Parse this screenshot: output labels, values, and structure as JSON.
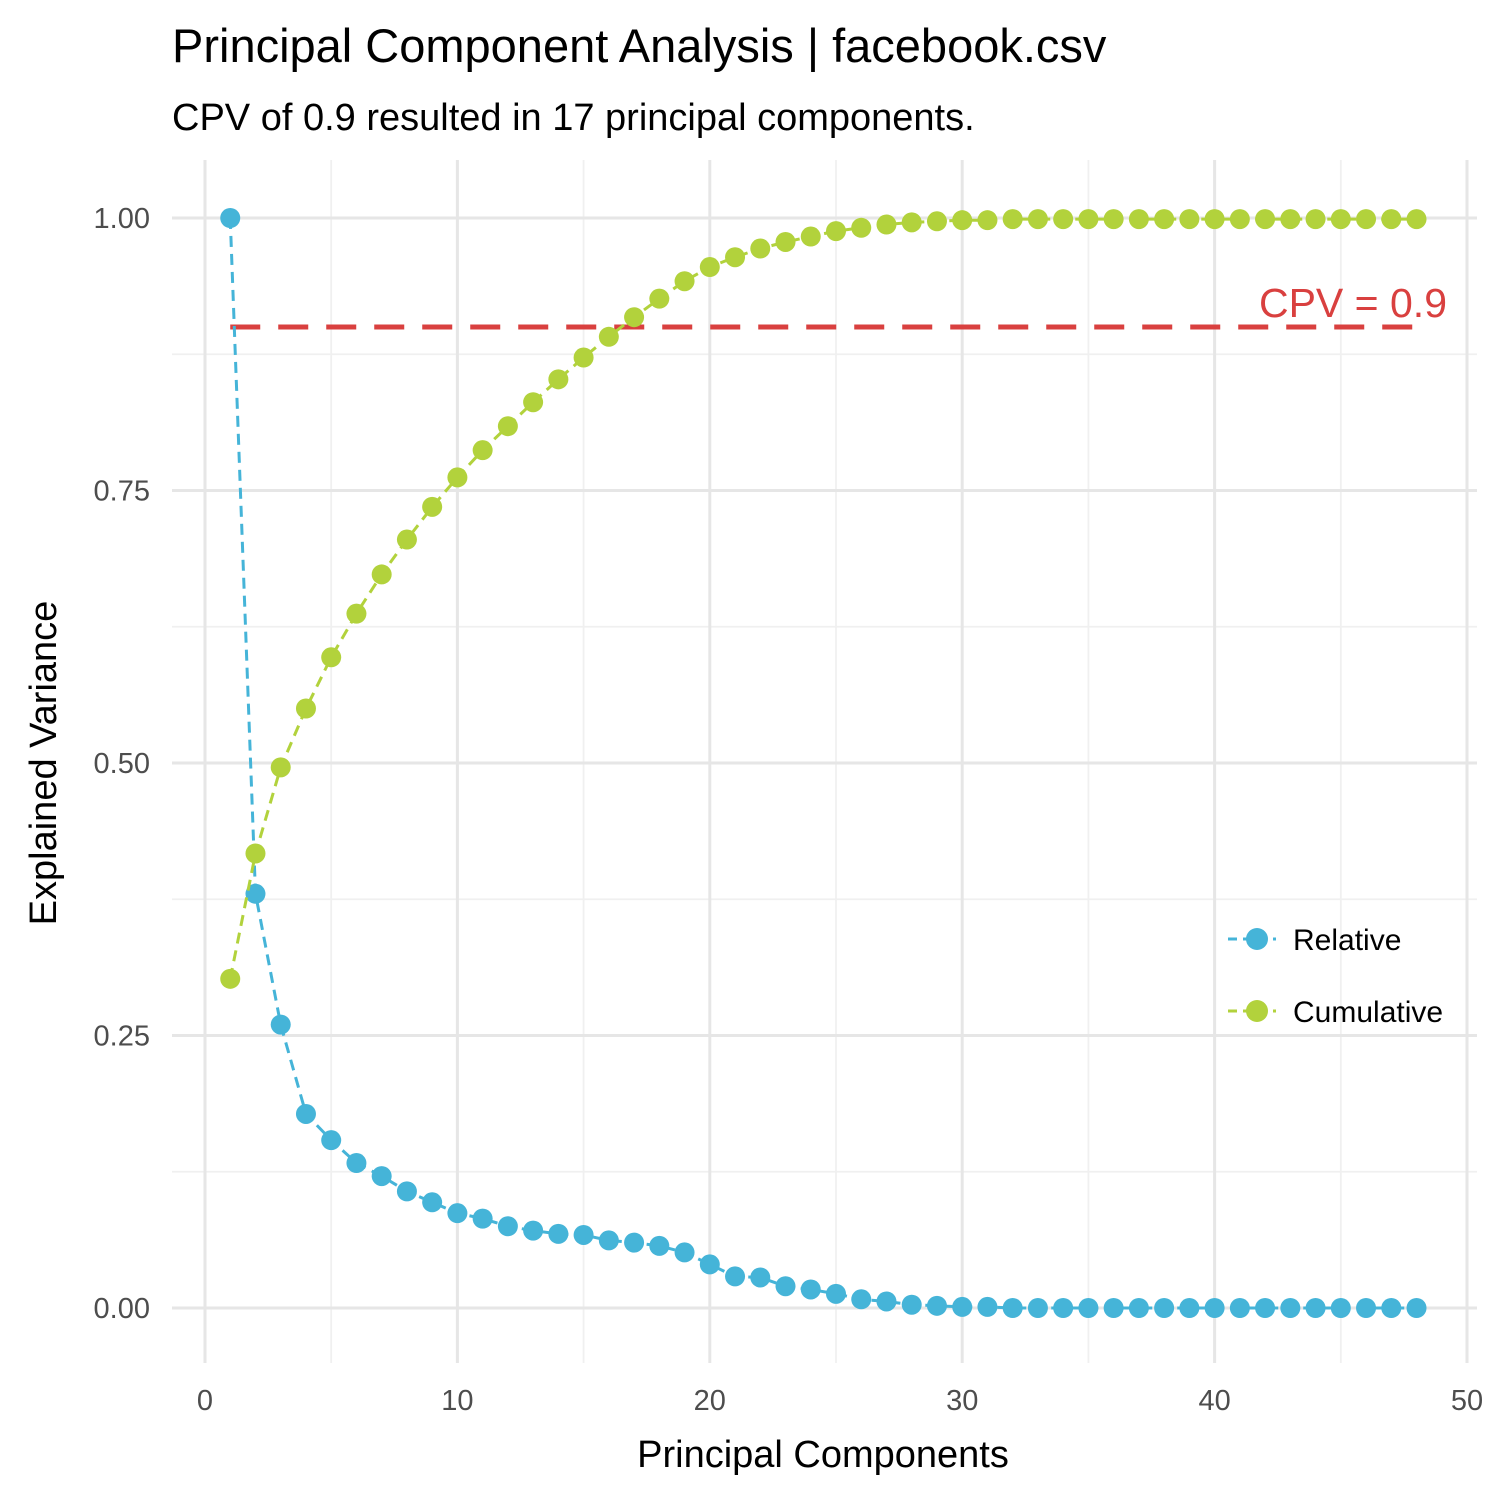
{
  "chart_data": {
    "type": "line",
    "title": "Principal Component Analysis | facebook.csv",
    "subtitle": "CPV of 0.9 resulted in 17 principal components.",
    "xlabel": "Principal Components",
    "ylabel": "Explained Variance",
    "xlim": [
      0,
      50
    ],
    "ylim": [
      0,
      1
    ],
    "x_ticks": [
      "0",
      "10",
      "20",
      "30",
      "40",
      "50"
    ],
    "y_ticks": [
      "0.00",
      "0.25",
      "0.50",
      "0.75",
      "1.00"
    ],
    "grid": true,
    "legend_position": "right",
    "x": [
      1,
      2,
      3,
      4,
      5,
      6,
      7,
      8,
      9,
      10,
      11,
      12,
      13,
      14,
      15,
      16,
      17,
      18,
      19,
      20,
      21,
      22,
      23,
      24,
      25,
      26,
      27,
      28,
      29,
      30,
      31,
      32,
      33,
      34,
      35,
      36,
      37,
      38,
      39,
      40,
      41,
      42,
      43,
      44,
      45,
      46,
      47,
      48
    ],
    "series": [
      {
        "name": "Relative",
        "color": "#45b4d8",
        "line_style": "dashed",
        "values": [
          1.0,
          0.38,
          0.26,
          0.178,
          0.154,
          0.133,
          0.121,
          0.107,
          0.097,
          0.087,
          0.082,
          0.075,
          0.071,
          0.068,
          0.067,
          0.062,
          0.06,
          0.057,
          0.051,
          0.04,
          0.029,
          0.028,
          0.02,
          0.017,
          0.013,
          0.008,
          0.006,
          0.003,
          0.002,
          0.001,
          0.001,
          0.0,
          0.0,
          0.0,
          0.0,
          0.0,
          0.0,
          0.0,
          0.0,
          0.0,
          0.0,
          0.0,
          0.0,
          0.0,
          0.0,
          0.0,
          0.0,
          0.0
        ]
      },
      {
        "name": "Cumulative",
        "color": "#b2d23c",
        "line_style": "dashed",
        "values": [
          0.302,
          0.417,
          0.496,
          0.55,
          0.597,
          0.637,
          0.673,
          0.705,
          0.735,
          0.762,
          0.787,
          0.809,
          0.831,
          0.852,
          0.872,
          0.891,
          0.909,
          0.926,
          0.942,
          0.955,
          0.964,
          0.972,
          0.978,
          0.983,
          0.988,
          0.991,
          0.994,
          0.996,
          0.997,
          0.998,
          0.998,
          0.999,
          0.999,
          0.999,
          0.999,
          0.999,
          0.999,
          0.999,
          0.999,
          0.999,
          0.999,
          0.999,
          0.999,
          0.999,
          0.999,
          0.999,
          0.999,
          0.999
        ]
      }
    ],
    "threshold": {
      "label": "CPV = 0.9",
      "value": 0.9,
      "x_start": 1,
      "x_end": 48,
      "color": "#d9403f"
    }
  }
}
